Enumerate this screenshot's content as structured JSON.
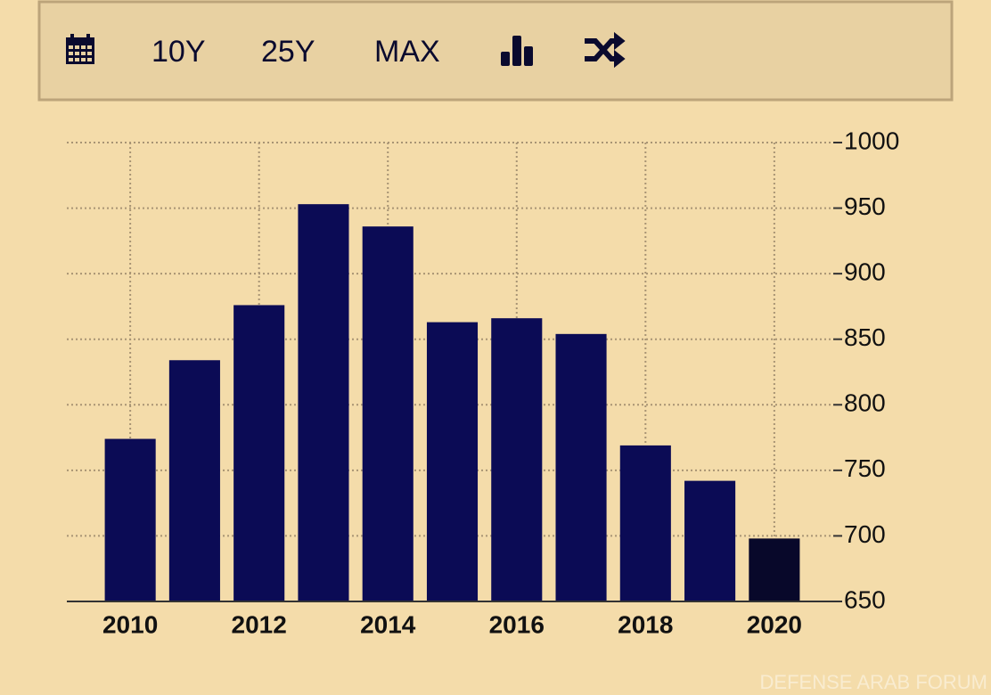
{
  "toolbar": {
    "buttons": [
      "10Y",
      "25Y",
      "MAX"
    ]
  },
  "watermark": "DEFENSE ARAB FORUM",
  "chart_data": {
    "type": "bar",
    "categories": [
      "2010",
      null,
      "2012",
      null,
      "2014",
      null,
      "2016",
      null,
      "2018",
      null,
      "2020"
    ],
    "values": [
      774,
      834,
      876,
      953,
      936,
      863,
      866,
      854,
      769,
      742,
      698
    ],
    "colors": [
      "#0b0b55",
      "#0b0b55",
      "#0b0b55",
      "#0b0b55",
      "#0b0b55",
      "#0b0b55",
      "#0b0b55",
      "#0b0b55",
      "#0b0b55",
      "#0b0b55",
      "#08082a"
    ],
    "ylim": [
      650,
      1000
    ],
    "yticks": [
      650,
      700,
      750,
      800,
      850,
      900,
      950,
      1000
    ],
    "grid": true,
    "y_axis_side": "right"
  }
}
